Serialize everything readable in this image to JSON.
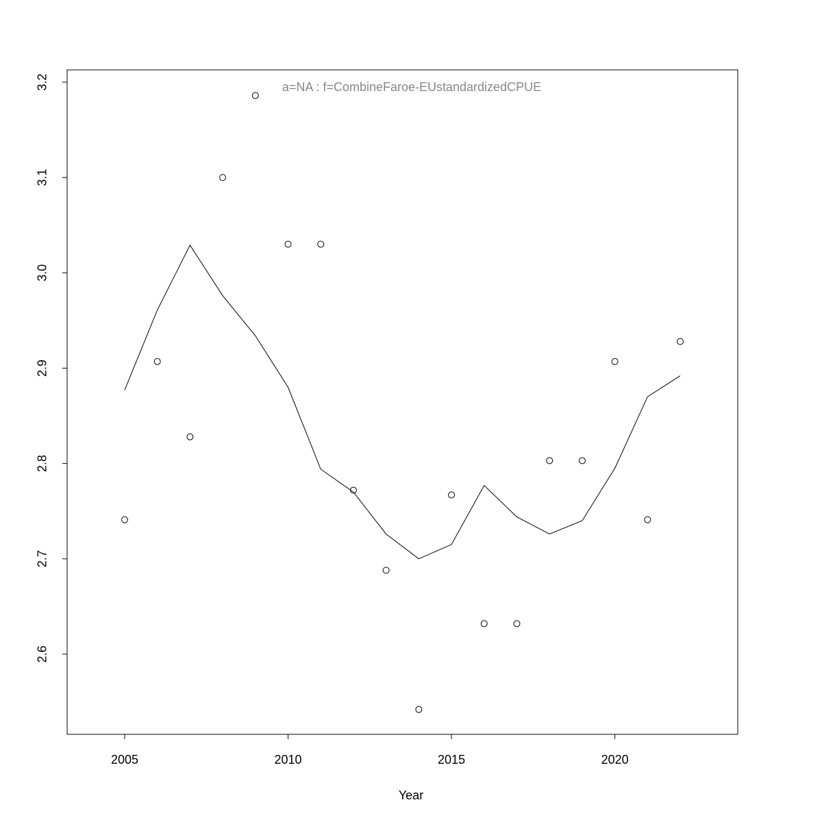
{
  "chart_data": {
    "type": "scatter",
    "annotation": "a=NA  :  f=CombineFaroe-EUstandardizedCPUE",
    "x_label": "Year",
    "x": [
      2005,
      2006,
      2007,
      2008,
      2009,
      2010,
      2011,
      2012,
      2013,
      2014,
      2015,
      2016,
      2017,
      2018,
      2019,
      2020,
      2021,
      2022
    ],
    "points": [
      2.741,
      2.907,
      2.828,
      3.1,
      3.186,
      3.03,
      3.03,
      2.772,
      2.688,
      2.542,
      2.767,
      2.632,
      2.632,
      2.803,
      2.803,
      2.907,
      2.741,
      2.928
    ],
    "line": [
      2.877,
      2.961,
      3.029,
      2.976,
      2.934,
      2.88,
      2.794,
      2.77,
      2.726,
      2.7,
      2.715,
      2.777,
      2.744,
      2.726,
      2.74,
      2.795,
      2.87,
      2.892
    ],
    "color": "#000000",
    "annotation_color": "#888888",
    "xlim": [
      2003.24,
      2023.76
    ],
    "ylim": [
      2.5159,
      3.2129
    ],
    "xticks": [
      2005,
      2010,
      2015,
      2020
    ],
    "yticks": [
      2.6,
      2.7,
      2.8,
      2.9,
      {
        "value": 3.0,
        "label": "3.0"
      },
      3.1,
      3.2
    ]
  }
}
